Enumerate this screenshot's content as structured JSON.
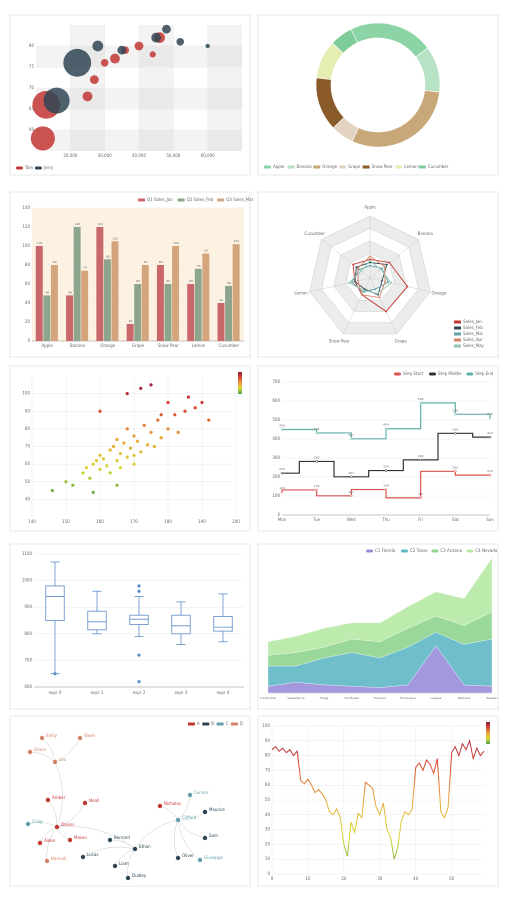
{
  "chart_data": [
    {
      "type": "bubble",
      "xlim": [
        10000,
        70000
      ],
      "xticks": [
        {
          "value": 20000,
          "label": "20,000"
        },
        {
          "value": 30000,
          "label": "30,000"
        },
        {
          "value": 40000,
          "label": "40,000"
        },
        {
          "value": 50000,
          "label": "50,000"
        },
        {
          "value": 60000,
          "label": "60,000"
        }
      ],
      "ylim": [
        55,
        85
      ],
      "yticks": [
        60,
        65,
        70,
        75,
        80
      ],
      "series": [
        {
          "name": "Tom",
          "color": "#c23531",
          "x": [
            12000,
            13000,
            25000,
            27000,
            30000,
            33000,
            36000,
            40000,
            44000,
            46000
          ],
          "values": [
            58,
            66,
            68,
            72,
            76,
            77,
            79,
            80,
            78,
            82
          ],
          "sizes": [
            30,
            40,
            5,
            4,
            3,
            5,
            3,
            4,
            2,
            6
          ]
        },
        {
          "name": "Jerry",
          "color": "#2f4554",
          "x": [
            16000,
            22000,
            28000,
            35000,
            45000,
            48000,
            52000,
            60000
          ],
          "values": [
            67,
            76,
            80,
            79,
            82,
            84,
            81,
            80
          ],
          "sizes": [
            35,
            40,
            6,
            4,
            5,
            4,
            3,
            1
          ]
        }
      ]
    },
    {
      "type": "donut",
      "categories": [
        "Apple",
        "Banana",
        "Orange",
        "Grape",
        "Snow Pear",
        "Lemon",
        "Cucumber"
      ],
      "values": [
        22,
        12,
        30,
        6,
        14,
        10,
        6
      ],
      "colors": [
        "#8cd3a6",
        "#b8e2c4",
        "#c8a879",
        "#e3d3c3",
        "#8b5a2b",
        "#e6edb1",
        "#7ecc98"
      ]
    },
    {
      "type": "bar",
      "categories": [
        "Apple",
        "Banana",
        "Orange",
        "Grape",
        "Snow Pear",
        "Lemon",
        "Cucumber"
      ],
      "ylim": [
        0,
        140
      ],
      "yticks": [
        0,
        20,
        40,
        60,
        80,
        100,
        120,
        140
      ],
      "series": [
        {
          "name": "Q1 Sales_Jan",
          "color": "#c9676a",
          "values": [
            100,
            48,
            120,
            18,
            80,
            60,
            40
          ]
        },
        {
          "name": "Q2 Sales_Feb",
          "color": "#8da58c",
          "values": [
            48,
            120,
            86,
            60,
            60,
            76,
            58
          ]
        },
        {
          "name": "Q3 Sales_Mar",
          "color": "#d4a57c",
          "values": [
            80,
            74,
            105,
            80,
            100,
            92,
            102
          ]
        }
      ]
    },
    {
      "type": "radar",
      "categories": [
        "Apple",
        "Banana",
        "Orange",
        "Grape",
        "Snow Pear",
        "Lemon",
        "Cucumber"
      ],
      "rlim": [
        0,
        100
      ],
      "rticks": [
        20,
        40,
        60,
        80,
        100
      ],
      "series": [
        {
          "name": "Sales_Jan",
          "color": "#c23531",
          "values": [
            30,
            40,
            62,
            60,
            30,
            25,
            35
          ]
        },
        {
          "name": "Sales_Feb",
          "color": "#2f4554",
          "values": [
            25,
            35,
            20,
            30,
            20,
            25,
            28
          ]
        },
        {
          "name": "Sales_Mar",
          "color": "#61a0a8",
          "values": [
            20,
            25,
            30,
            20,
            25,
            30,
            22
          ]
        },
        {
          "name": "Sales_Apr",
          "color": "#d48265",
          "values": [
            35,
            30,
            25,
            35,
            30,
            20,
            25
          ]
        },
        {
          "name": "Sales_May",
          "color": "#91c7ae",
          "values": [
            28,
            22,
            35,
            28,
            22,
            35,
            18
          ]
        }
      ]
    },
    {
      "type": "scatter",
      "xlim": [
        140,
        200
      ],
      "xticks": [
        140,
        150,
        160,
        170,
        180,
        190,
        200
      ],
      "ylim": [
        30,
        110
      ],
      "yticks": [
        40,
        50,
        60,
        70,
        80,
        90,
        100
      ],
      "visual_range": [
        40,
        110
      ],
      "visual_colors": [
        "#4ea04e",
        "#d9d933",
        "#e8a43a",
        "#d9462f",
        "#8b1a4a"
      ],
      "x": [
        146,
        150,
        152,
        155,
        156,
        157,
        158,
        159,
        160,
        160,
        161,
        162,
        163,
        163,
        164,
        165,
        165,
        166,
        166,
        167,
        168,
        168,
        169,
        170,
        170,
        171,
        172,
        173,
        174,
        175,
        176,
        177,
        178,
        180,
        182,
        185,
        188,
        190,
        192,
        175,
        168,
        160,
        172,
        180,
        186,
        165,
        158,
        170,
        178,
        183
      ],
      "values": [
        45,
        50,
        48,
        55,
        58,
        52,
        60,
        62,
        57,
        65,
        63,
        59,
        68,
        55,
        70,
        62,
        74,
        66,
        58,
        72,
        64,
        80,
        69,
        76,
        60,
        73,
        67,
        82,
        71,
        78,
        70,
        85,
        75,
        80,
        88,
        90,
        92,
        95,
        85,
        105,
        100,
        90,
        103,
        95,
        98,
        48,
        44,
        65,
        88,
        78
      ]
    },
    {
      "type": "step",
      "categories": [
        "Mon",
        "Tue",
        "Wed",
        "Thu",
        "Fri",
        "Sat",
        "Sun"
      ],
      "ylim": [
        0,
        700
      ],
      "yticks": [
        0,
        100,
        200,
        300,
        400,
        500,
        600,
        700
      ],
      "series": [
        {
          "name": "Step Start",
          "color": "#d9534f",
          "step": "start",
          "values": [
            120,
            132,
            101,
            134,
            90,
            230,
            210
          ]
        },
        {
          "name": "Step Middle",
          "color": "#333333",
          "step": "middle",
          "values": [
            220,
            282,
            201,
            234,
            290,
            430,
            410
          ]
        },
        {
          "name": "Step End",
          "color": "#5fb0a8",
          "step": "end",
          "values": [
            450,
            432,
            401,
            454,
            590,
            530,
            510
          ]
        }
      ]
    },
    {
      "type": "box",
      "categories": [
        "expr 0",
        "expr 1",
        "expr 2",
        "expr 3",
        "expr 4"
      ],
      "ylim": [
        600,
        1100
      ],
      "yticks": [
        600,
        700,
        800,
        900,
        1000,
        1100
      ],
      "color": "#5b8cc8",
      "boxes": [
        [
          650,
          850,
          940,
          980,
          1070
        ],
        [
          800,
          815,
          845,
          885,
          960
        ],
        [
          790,
          835,
          855,
          870,
          940
        ],
        [
          760,
          800,
          830,
          870,
          920
        ],
        [
          770,
          810,
          825,
          865,
          950
        ]
      ],
      "outliers": [
        [
          650
        ],
        [],
        [
          620,
          720,
          960,
          980
        ],
        [],
        []
      ]
    },
    {
      "type": "area",
      "categories": [
        "Ice Bucket",
        "Subsidence",
        "Hinge",
        "Sunflower",
        "Equinox",
        "Procession",
        "League",
        "Wetness",
        "Powder"
      ],
      "ylim": [
        0,
        100
      ],
      "series": [
        {
          "name": "C1 Florida",
          "color": "#9b8cd9",
          "values": [
            5,
            8,
            6,
            5,
            4,
            6,
            35,
            6,
            5
          ]
        },
        {
          "name": "C2 Texas",
          "color": "#5fb7c7",
          "values": [
            15,
            12,
            20,
            25,
            22,
            28,
            10,
            30,
            35
          ]
        },
        {
          "name": "C3 Arizona",
          "color": "#8fd48f",
          "values": [
            8,
            10,
            8,
            10,
            12,
            14,
            12,
            14,
            20
          ]
        },
        {
          "name": "C4 Nevada",
          "color": "#b6e8a4",
          "values": [
            10,
            12,
            14,
            12,
            14,
            16,
            18,
            20,
            40
          ]
        }
      ]
    },
    {
      "type": "graph",
      "groups": [
        {
          "name": "A",
          "color": "#c23531"
        },
        {
          "name": "B",
          "color": "#2f4554"
        },
        {
          "name": "C",
          "color": "#61a0a8"
        },
        {
          "name": "D",
          "color": "#d48265"
        }
      ],
      "nodes": [
        {
          "name": "Emily",
          "group": 3
        },
        {
          "name": "Owen",
          "group": 3
        },
        {
          "name": "Grace",
          "group": 3
        },
        {
          "name": "Leo",
          "group": 3
        },
        {
          "name": "Amber",
          "group": 0
        },
        {
          "name": "Noah",
          "group": 0
        },
        {
          "name": "Craig",
          "group": 2
        },
        {
          "name": "Daniel",
          "group": 0
        },
        {
          "name": "Aiden",
          "group": 0
        },
        {
          "name": "Hannah",
          "group": 3
        },
        {
          "name": "Mason",
          "group": 0
        },
        {
          "name": "Bernard",
          "group": 1
        },
        {
          "name": "Lucas",
          "group": 1
        },
        {
          "name": "Liam",
          "group": 1
        },
        {
          "name": "Dudley",
          "group": 1
        },
        {
          "name": "Ethan",
          "group": 1
        },
        {
          "name": "Clifford",
          "group": 2
        },
        {
          "name": "Nicholas",
          "group": 0
        },
        {
          "name": "Connor",
          "group": 2
        },
        {
          "name": "Maurice",
          "group": 1
        },
        {
          "name": "Sam",
          "group": 1
        },
        {
          "name": "Oliver",
          "group": 1
        },
        {
          "name": "Giuseppe",
          "group": 2
        }
      ],
      "links": [
        [
          0,
          3
        ],
        [
          1,
          3
        ],
        [
          2,
          3
        ],
        [
          3,
          7
        ],
        [
          4,
          7
        ],
        [
          5,
          7
        ],
        [
          6,
          7
        ],
        [
          8,
          7
        ],
        [
          9,
          7
        ],
        [
          10,
          7
        ],
        [
          7,
          15
        ],
        [
          11,
          15
        ],
        [
          12,
          15
        ],
        [
          13,
          15
        ],
        [
          14,
          15
        ],
        [
          15,
          16
        ],
        [
          17,
          16
        ],
        [
          18,
          16
        ],
        [
          19,
          16
        ],
        [
          20,
          16
        ],
        [
          21,
          16
        ],
        [
          22,
          16
        ]
      ]
    },
    {
      "type": "visual-line",
      "xlim": [
        0,
        59
      ],
      "xticks": [
        0,
        10,
        20,
        30,
        40,
        50
      ],
      "ylim": [
        0,
        100
      ],
      "yticks": [
        0,
        10,
        20,
        30,
        40,
        50,
        60,
        70,
        80,
        90,
        100
      ],
      "visual_range": [
        0,
        100
      ],
      "visual_colors": [
        "#4ea04e",
        "#d9d933",
        "#e8a43a",
        "#d9462f",
        "#8b1a4a"
      ],
      "x": [
        0,
        1,
        2,
        3,
        4,
        5,
        6,
        7,
        8,
        9,
        10,
        11,
        12,
        13,
        14,
        15,
        16,
        17,
        18,
        19,
        20,
        21,
        22,
        23,
        24,
        25,
        26,
        27,
        28,
        29,
        30,
        31,
        32,
        33,
        34,
        35,
        36,
        37,
        38,
        39,
        40,
        41,
        42,
        43,
        44,
        45,
        46,
        47,
        48,
        49,
        50,
        51,
        52,
        53,
        54,
        55,
        56,
        57,
        58,
        59
      ],
      "values": [
        84,
        86,
        83,
        85,
        82,
        84,
        80,
        83,
        63,
        61,
        64,
        60,
        55,
        57,
        54,
        50,
        42,
        40,
        44,
        38,
        20,
        12,
        35,
        28,
        41,
        38,
        62,
        60,
        58,
        45,
        40,
        48,
        30,
        25,
        10,
        18,
        36,
        42,
        40,
        44,
        72,
        75,
        70,
        77,
        74,
        68,
        78,
        42,
        38,
        45,
        82,
        86,
        80,
        88,
        84,
        90,
        78,
        85,
        80,
        83
      ]
    }
  ]
}
